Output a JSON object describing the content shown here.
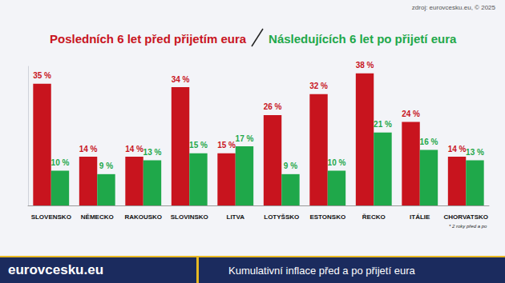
{
  "chart_data": {
    "type": "bar",
    "title": "Kumulativní inflace před a po přijetí eura",
    "annotations": {
      "brand": "eurovcesku.eu",
      "source": "zdroj: eurovcesku.eu, © 2025",
      "footnote": "* 2 roky před a po"
    },
    "categories": [
      "SLOVENSKO",
      "NĚMECKO",
      "RAKOUSKO",
      "SLOVINSKO",
      "LITVA",
      "LOTYŠSKO",
      "ESTONSKO",
      "ŘECKO",
      "ITÁLIE",
      "CHORVATSKO"
    ],
    "series": [
      {
        "name": "Posledních 6 let před přijetím eura",
        "color": "#c8141e",
        "values": [
          35,
          14,
          14,
          34,
          15,
          26,
          32,
          38,
          24,
          14
        ],
        "value_labels": [
          "35 %",
          "14 %",
          "14 %",
          "34 %",
          "15 %",
          "26 %",
          "32 %",
          "38 %",
          "24 %",
          "14 %"
        ]
      },
      {
        "name": "Následujících 6 let po přijetí eura",
        "color": "#1fa84a",
        "values": [
          10,
          9,
          13,
          15,
          17,
          9,
          10,
          21,
          16,
          13
        ],
        "value_labels": [
          "10 %",
          "9 %",
          "13 %",
          "15 %",
          "17 %",
          "9 %",
          "10 %",
          "21 %",
          "16 %",
          "13 %"
        ]
      }
    ],
    "ylim": [
      0,
      40
    ],
    "grid": false,
    "data_labels": true,
    "tick_labels": "x"
  }
}
